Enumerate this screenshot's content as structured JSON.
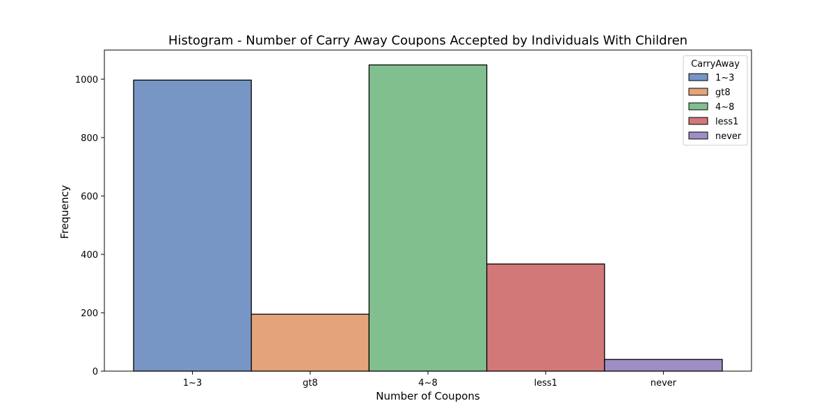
{
  "chart_data": {
    "type": "bar",
    "title": "Histogram - Number of Carry Away Coupons Accepted by Individuals With Children",
    "xlabel": "Number of Coupons",
    "ylabel": "Frequency",
    "categories": [
      "1~3",
      "gt8",
      "4~8",
      "less1",
      "never"
    ],
    "values": [
      997,
      195,
      1049,
      367,
      40
    ],
    "colors": [
      "#7896c5",
      "#e4a37a",
      "#81bf8f",
      "#d27879",
      "#9e8ec4"
    ],
    "ylim": [
      0,
      1100
    ],
    "yticks": [
      0,
      200,
      400,
      600,
      800,
      1000
    ],
    "grid": false,
    "legend": {
      "title": "CarryAway",
      "placement": "top-right",
      "entries": [
        "1~3",
        "gt8",
        "4~8",
        "less1",
        "never"
      ]
    }
  }
}
